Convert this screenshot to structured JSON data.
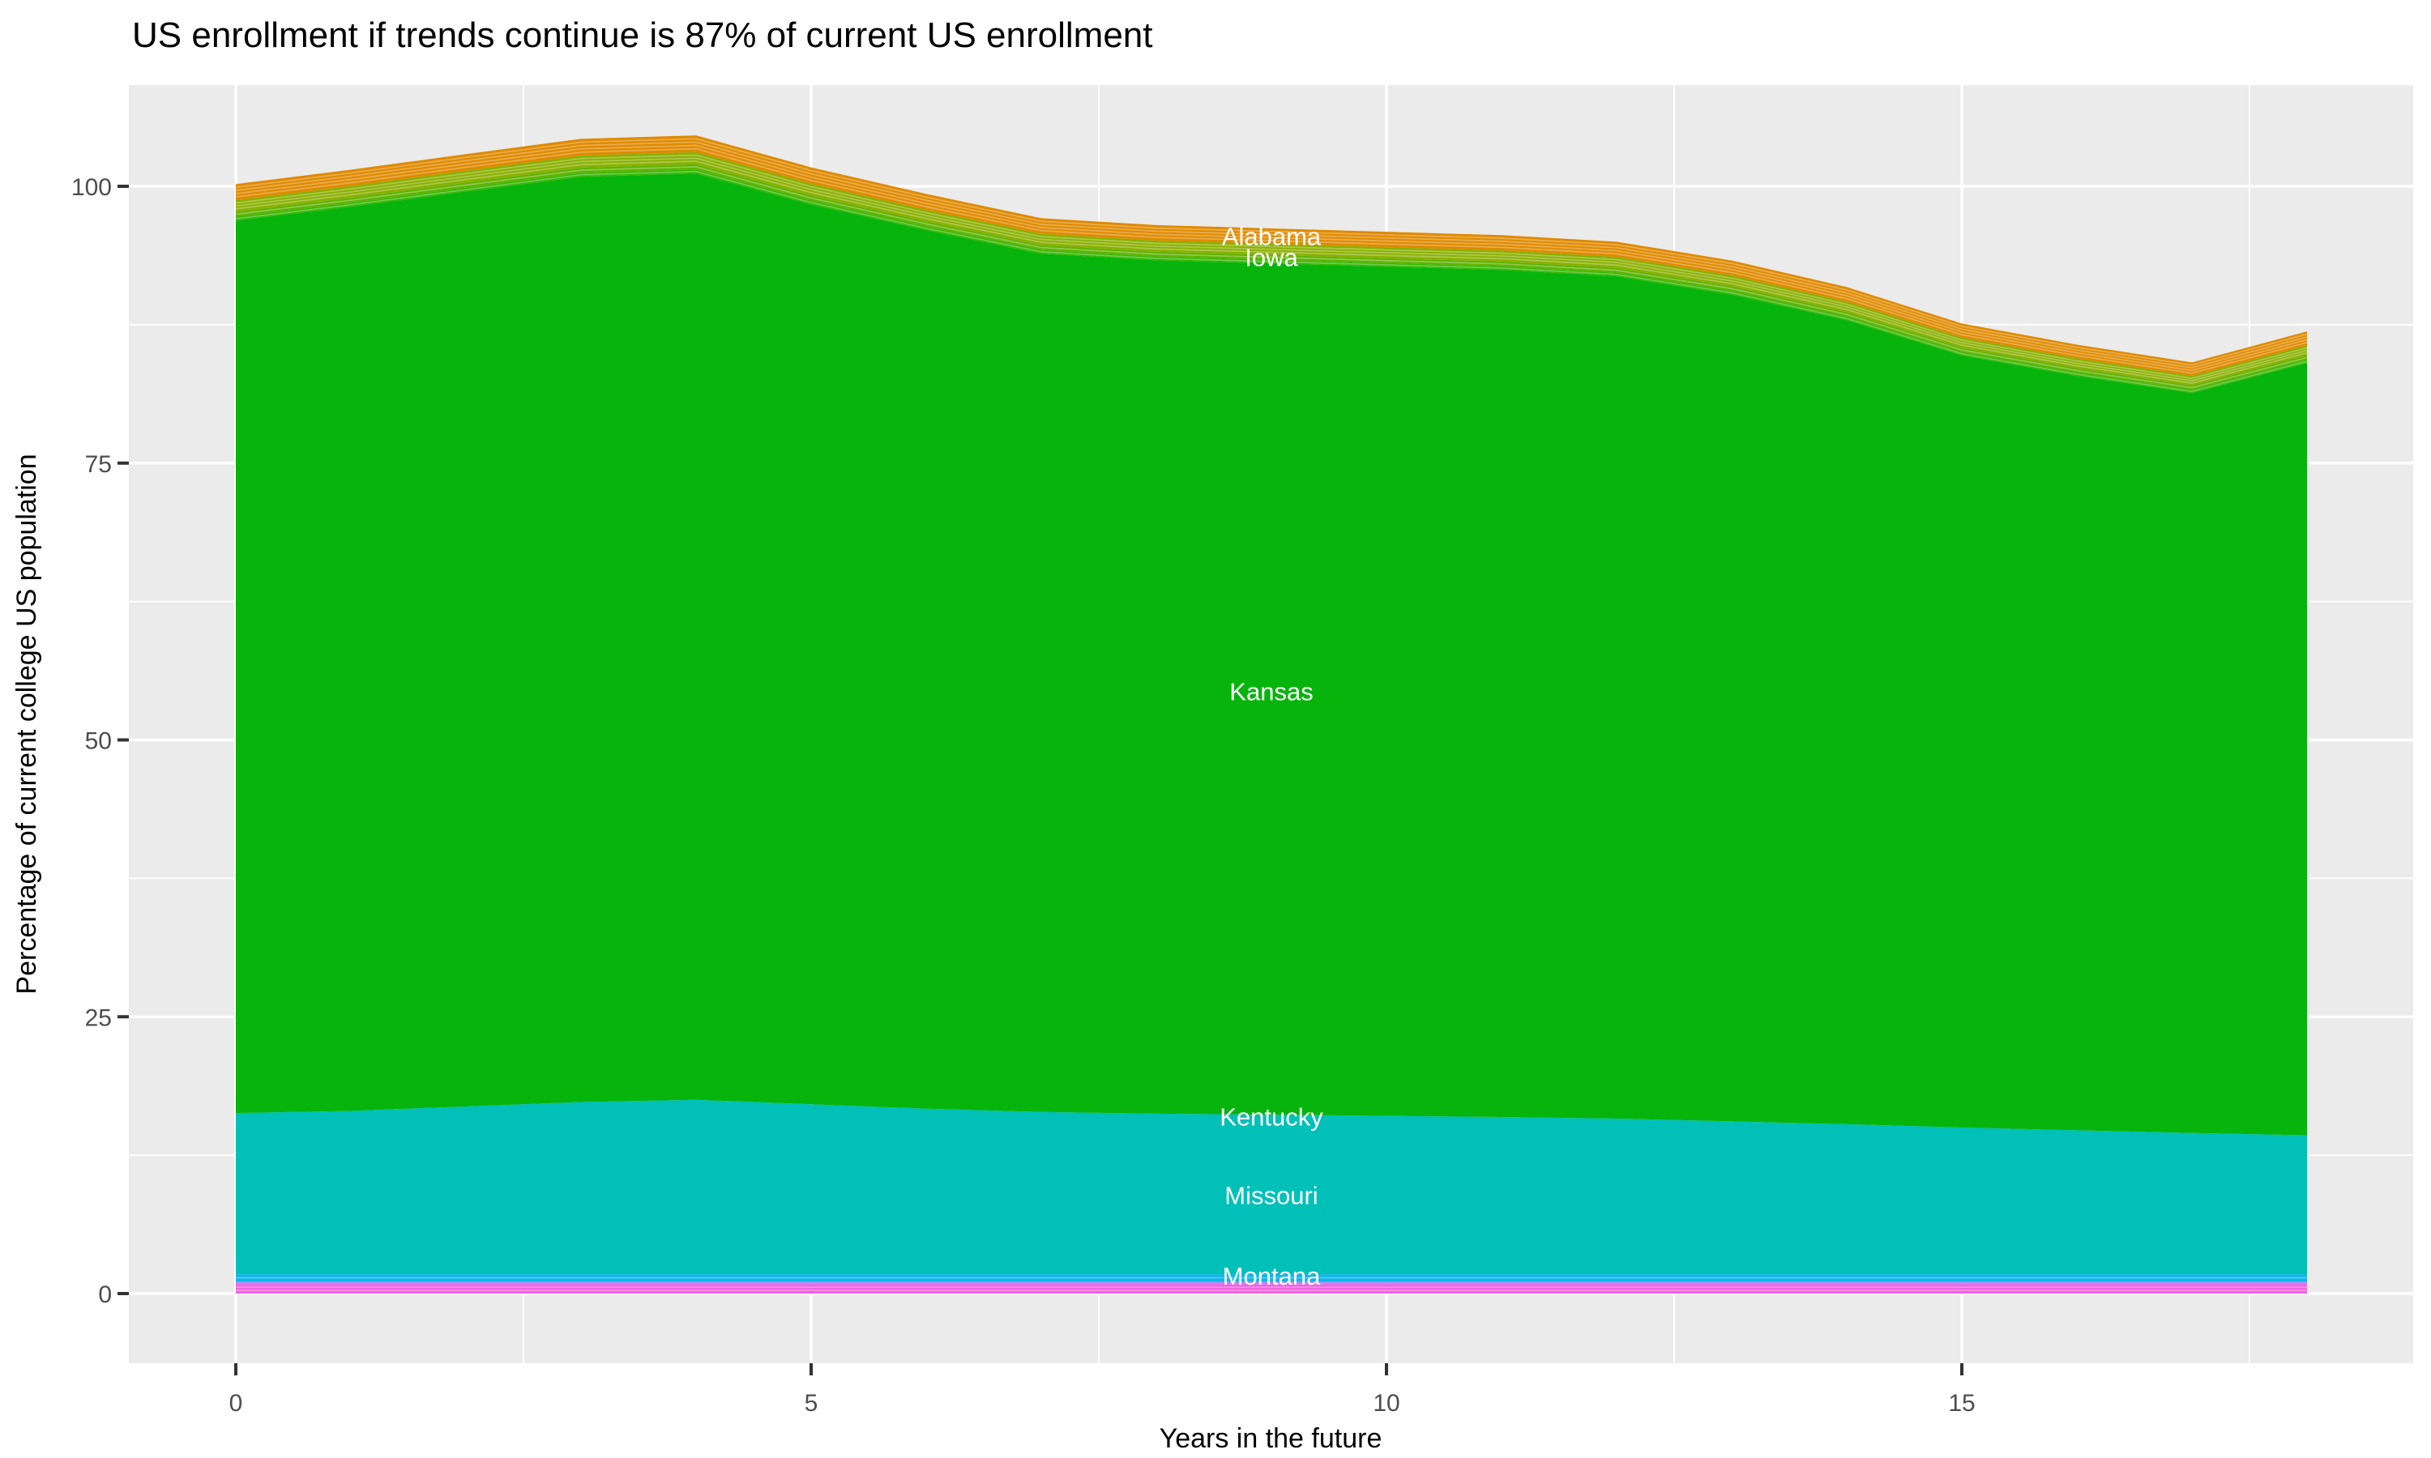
{
  "chart_data": {
    "type": "area",
    "title": "US enrollment if trends continue is 87% of current US enrollment",
    "xlabel": "Years in the future",
    "ylabel": "Percentage of current college US population",
    "panel_bg": "#EBEBEB",
    "grid_color": "#FFFFFF",
    "tick_mark_color": "#333333",
    "tick_label_color": "#4D4D4D",
    "state_label_color": "#FFFFFF",
    "x": [
      0,
      1,
      2,
      3,
      4,
      5,
      6,
      7,
      8,
      9,
      10,
      11,
      12,
      13,
      14,
      15,
      16,
      17,
      18
    ],
    "x_ticks": [
      0,
      5,
      10,
      15
    ],
    "x_minor_ticks": [
      2.5,
      7.5,
      12.5,
      17.5
    ],
    "y_ticks": [
      0,
      25,
      50,
      75,
      100
    ],
    "y_minor_ticks": [
      12.5,
      37.5,
      62.5,
      87.5
    ],
    "xlim": [
      -0.93,
      18.92
    ],
    "ylim": [
      -6.3,
      109.2
    ],
    "stack_top_total": [
      100.2,
      101.5,
      102.9,
      104.3,
      104.6,
      101.7,
      99.3,
      97.1,
      96.5,
      96.2,
      95.9,
      95.6,
      95.0,
      93.3,
      90.9,
      87.6,
      85.7,
      84.1,
      86.9
    ],
    "layers": [
      {
        "name": "bottom-magenta",
        "color": "#F263DE",
        "stripes": 2,
        "values": [
          0.85,
          0.85,
          0.85,
          0.85,
          0.85,
          0.85,
          0.85,
          0.85,
          0.85,
          0.85,
          0.85,
          0.85,
          0.85,
          0.85,
          0.85,
          0.85,
          0.85,
          0.85,
          0.85
        ]
      },
      {
        "name": "bottom-violet",
        "color": "#C77CFF",
        "stripes": 0,
        "values": [
          0.13,
          0.13,
          0.13,
          0.13,
          0.13,
          0.13,
          0.13,
          0.13,
          0.13,
          0.13,
          0.13,
          0.13,
          0.13,
          0.13,
          0.13,
          0.13,
          0.13,
          0.13,
          0.13
        ]
      },
      {
        "name": "bottom-blue-violet",
        "color": "#9590FF",
        "stripes": 0,
        "values": [
          0.12,
          0.12,
          0.12,
          0.12,
          0.12,
          0.12,
          0.12,
          0.12,
          0.12,
          0.12,
          0.12,
          0.12,
          0.12,
          0.12,
          0.12,
          0.12,
          0.12,
          0.12,
          0.12
        ]
      },
      {
        "name": "montana",
        "color": "#0FB5E9",
        "stripes": 1,
        "values": [
          0.65,
          0.65,
          0.65,
          0.65,
          0.65,
          0.65,
          0.65,
          0.65,
          0.65,
          0.65,
          0.65,
          0.65,
          0.65,
          0.65,
          0.65,
          0.65,
          0.65,
          0.65,
          0.65
        ]
      },
      {
        "name": "missouri",
        "color": "#00C0B8",
        "stripes": 0,
        "values": [
          14.55,
          14.75,
          15.15,
          15.55,
          15.75,
          15.35,
          14.95,
          14.65,
          14.5,
          14.4,
          14.3,
          14.2,
          14.05,
          13.8,
          13.55,
          13.25,
          13.0,
          12.75,
          12.55
        ]
      },
      {
        "name": "kansas",
        "color": "#06B40C",
        "stripes": 0,
        "values": [
          80.6,
          81.66,
          82.62,
          83.56,
          83.65,
          81.25,
          79.33,
          77.51,
          77.07,
          76.88,
          76.69,
          76.5,
          76.07,
          74.67,
          72.6,
          69.72,
          68.13,
          66.83,
          69.74
        ]
      },
      {
        "name": "green-stripe",
        "color": "#33B700",
        "stripes": 1,
        "values": [
          0.35,
          0.35,
          0.36,
          0.36,
          0.37,
          0.36,
          0.35,
          0.34,
          0.34,
          0.34,
          0.33,
          0.33,
          0.33,
          0.33,
          0.32,
          0.31,
          0.3,
          0.29,
          0.3
        ]
      },
      {
        "name": "yellow-green-stripe",
        "color": "#5FB200",
        "stripes": 1,
        "values": [
          0.45,
          0.46,
          0.46,
          0.47,
          0.47,
          0.46,
          0.45,
          0.44,
          0.43,
          0.43,
          0.43,
          0.43,
          0.43,
          0.42,
          0.41,
          0.39,
          0.38,
          0.38,
          0.39
        ]
      },
      {
        "name": "iowa",
        "color": "#8AB000",
        "stripes": 3,
        "values": [
          1.05,
          1.06,
          1.08,
          1.09,
          1.1,
          1.07,
          1.04,
          1.02,
          1.01,
          1.01,
          1.0,
          1.0,
          1.0,
          0.98,
          0.95,
          0.92,
          0.9,
          0.88,
          0.91
        ]
      },
      {
        "name": "alabama",
        "color": "#E08A00",
        "stripes": 4,
        "values": [
          1.45,
          1.47,
          1.49,
          1.51,
          1.51,
          1.47,
          1.44,
          1.41,
          1.4,
          1.39,
          1.39,
          1.38,
          1.37,
          1.35,
          1.32,
          1.27,
          1.24,
          1.22,
          1.26
        ]
      }
    ],
    "state_labels": [
      {
        "text": "Alabama",
        "x": 9.0,
        "y": 95.5
      },
      {
        "text": "Iowa",
        "x": 9.0,
        "y": 93.6
      },
      {
        "text": "Kansas",
        "x": 9.0,
        "y": 54.4
      },
      {
        "text": "Kentucky",
        "x": 9.0,
        "y": 16.0
      },
      {
        "text": "Missouri",
        "x": 9.0,
        "y": 8.9
      },
      {
        "text": "Montana",
        "x": 9.0,
        "y": 1.6
      }
    ]
  }
}
